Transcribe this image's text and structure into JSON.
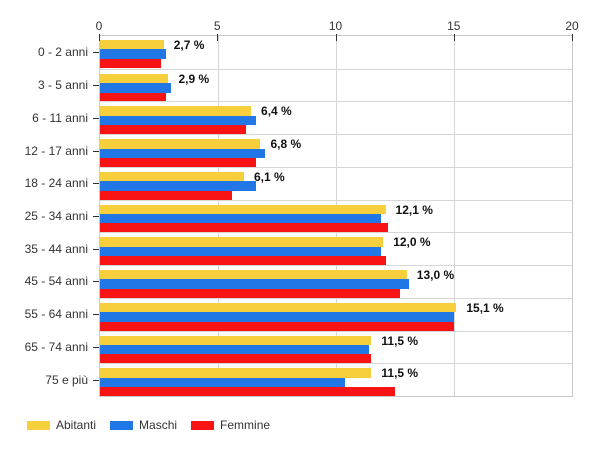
{
  "chart_data": {
    "type": "bar",
    "orientation": "horizontal",
    "title": "",
    "xlabel": "",
    "ylabel": "",
    "xlim": [
      0,
      20
    ],
    "x_ticks": [
      0,
      5,
      10,
      15,
      20
    ],
    "grid": true,
    "legend_position": "bottom-left",
    "categories": [
      "0 - 2 anni",
      "3 - 5 anni",
      "6 - 11 anni",
      "12 - 17 anni",
      "18 - 24 anni",
      "25 - 34 anni",
      "35 - 44 anni",
      "45 - 54 anni",
      "55 - 64 anni",
      "65 - 74 anni",
      "75 e più"
    ],
    "series": [
      {
        "name": "Abitanti",
        "color": "#F7CF3D",
        "values": [
          2.7,
          2.9,
          6.4,
          6.8,
          6.1,
          12.1,
          12.0,
          13.0,
          15.1,
          11.5,
          11.5
        ]
      },
      {
        "name": "Maschi",
        "color": "#2277E6",
        "values": [
          2.8,
          3.0,
          6.6,
          7.0,
          6.6,
          11.9,
          11.9,
          13.1,
          15.0,
          11.4,
          10.4
        ]
      },
      {
        "name": "Femmine",
        "color": "#F81414",
        "values": [
          2.6,
          2.8,
          6.2,
          6.6,
          5.6,
          12.2,
          12.1,
          12.7,
          15.0,
          11.5,
          12.5
        ]
      }
    ],
    "value_labels": [
      "2,7 %",
      "2,9 %",
      "6,4 %",
      "6,8 %",
      "6,1 %",
      "12,1 %",
      "12,0 %",
      "13,0 %",
      "15,1 %",
      "11,5 %",
      "11,5 %"
    ],
    "colors": {
      "grid": "#d6d6d6",
      "axis_tick": "#333333",
      "text": "#333333",
      "value_label": "#111111",
      "background": "#ffffff"
    }
  }
}
